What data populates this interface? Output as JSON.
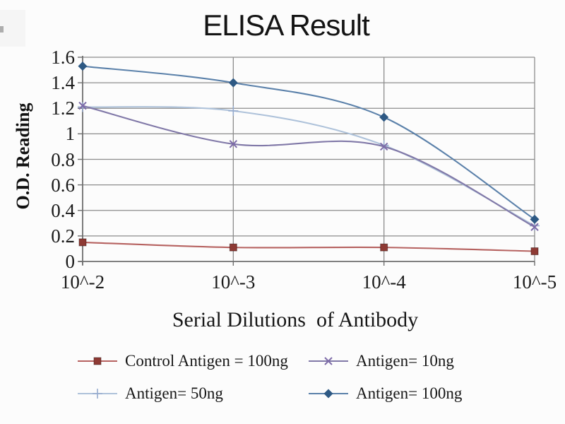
{
  "chart_data": {
    "type": "line",
    "title": "ELISA Result",
    "xlabel": "Serial Dilutions  of Antibody",
    "ylabel": "O.D. Reading",
    "categories": [
      "10^-2",
      "10^-3",
      "10^-4",
      "10^-5"
    ],
    "y_ticks": [
      "0",
      "0.2",
      "0.4",
      "0.6",
      "0.8",
      "1",
      "1.2",
      "1.4",
      "1.6"
    ],
    "ylim": [
      0,
      1.6
    ],
    "grid": true,
    "line_smoothing": true,
    "legend_position": "bottom",
    "axis_color": "#6e6e6e",
    "grid_color": "#8c8c8c",
    "series": [
      {
        "name": "Control Antigen = 100ng",
        "marker": "square",
        "line_color": "#b66260",
        "marker_color": "#8e3a34",
        "values": [
          0.15,
          0.11,
          0.11,
          0.08
        ]
      },
      {
        "name": "Antigen= 10ng",
        "marker": "x",
        "line_color": "#8179a8",
        "marker_color": "#7d6ba8",
        "values": [
          1.22,
          0.92,
          0.9,
          0.27
        ]
      },
      {
        "name": "Antigen= 50ng",
        "marker": "plus",
        "line_color": "#aec2da",
        "marker_color": "#96abce",
        "values": [
          1.21,
          1.18,
          0.91,
          0.28
        ]
      },
      {
        "name": "Antigen= 100ng",
        "marker": "diamond",
        "line_color": "#5b81aa",
        "marker_color": "#2e5984",
        "values": [
          1.53,
          1.4,
          1.13,
          0.33
        ]
      }
    ]
  }
}
